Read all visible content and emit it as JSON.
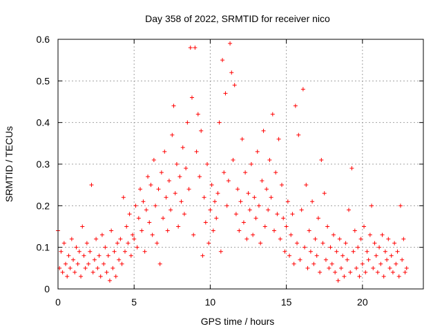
{
  "chart_data": {
    "type": "scatter",
    "title": "Day 358 of 2022, SRMTID for receiver nico",
    "xlabel": "GPS time / hours",
    "ylabel": "SRMTID / TECUs",
    "xlim": [
      0,
      24
    ],
    "ylim": [
      0,
      0.6
    ],
    "xticks": [
      0,
      5,
      10,
      15,
      20
    ],
    "yticks": [
      0,
      0.1,
      0.2,
      0.3,
      0.4,
      0.5,
      0.6
    ],
    "xtick_labels": [
      "0",
      "5",
      "10",
      "15",
      "20"
    ],
    "ytick_labels": [
      "0",
      "0.1",
      "0.2",
      "0.3",
      "0.4",
      "0.5",
      "0.6"
    ],
    "grid": true,
    "marker": "+",
    "series": [
      {
        "name": "SRMTID",
        "color": "#ff0000",
        "points": [
          [
            0.0,
            0.14
          ],
          [
            0.1,
            0.05
          ],
          [
            0.2,
            0.09
          ],
          [
            0.3,
            0.04
          ],
          [
            0.4,
            0.11
          ],
          [
            0.5,
            0.06
          ],
          [
            0.6,
            0.03
          ],
          [
            0.7,
            0.08
          ],
          [
            0.8,
            0.05
          ],
          [
            0.9,
            0.12
          ],
          [
            1.0,
            0.07
          ],
          [
            1.1,
            0.04
          ],
          [
            1.2,
            0.1
          ],
          [
            1.3,
            0.06
          ],
          [
            1.4,
            0.09
          ],
          [
            1.5,
            0.03
          ],
          [
            1.6,
            0.15
          ],
          [
            1.7,
            0.08
          ],
          [
            1.8,
            0.05
          ],
          [
            1.9,
            0.11
          ],
          [
            2.0,
            0.06
          ],
          [
            2.1,
            0.09
          ],
          [
            2.2,
            0.25
          ],
          [
            2.3,
            0.04
          ],
          [
            2.4,
            0.07
          ],
          [
            2.5,
            0.12
          ],
          [
            2.6,
            0.05
          ],
          [
            2.7,
            0.08
          ],
          [
            2.8,
            0.03
          ],
          [
            2.9,
            0.13
          ],
          [
            3.0,
            0.06
          ],
          [
            3.1,
            0.1
          ],
          [
            3.2,
            0.04
          ],
          [
            3.3,
            0.08
          ],
          [
            3.4,
            0.02
          ],
          [
            3.5,
            0.14
          ],
          [
            3.6,
            0.05
          ],
          [
            3.7,
            0.09
          ],
          [
            3.8,
            0.03
          ],
          [
            3.9,
            0.11
          ],
          [
            4.0,
            0.07
          ],
          [
            4.1,
            0.12
          ],
          [
            4.2,
            0.06
          ],
          [
            4.3,
            0.22
          ],
          [
            4.4,
            0.09
          ],
          [
            4.5,
            0.15
          ],
          [
            4.6,
            0.11
          ],
          [
            4.7,
            0.18
          ],
          [
            4.8,
            0.08
          ],
          [
            4.9,
            0.13
          ],
          [
            5.0,
            0.12
          ],
          [
            5.1,
            0.2
          ],
          [
            5.2,
            0.1
          ],
          [
            5.3,
            0.17
          ],
          [
            5.4,
            0.24
          ],
          [
            5.5,
            0.14
          ],
          [
            5.6,
            0.21
          ],
          [
            5.7,
            0.09
          ],
          [
            5.8,
            0.19
          ],
          [
            5.9,
            0.27
          ],
          [
            6.0,
            0.16
          ],
          [
            6.1,
            0.25
          ],
          [
            6.2,
            0.13
          ],
          [
            6.3,
            0.31
          ],
          [
            6.4,
            0.2
          ],
          [
            6.5,
            0.11
          ],
          [
            6.6,
            0.24
          ],
          [
            6.7,
            0.06
          ],
          [
            6.8,
            0.28
          ],
          [
            6.9,
            0.17
          ],
          [
            7.0,
            0.33
          ],
          [
            7.1,
            0.22
          ],
          [
            7.2,
            0.14
          ],
          [
            7.3,
            0.26
          ],
          [
            7.4,
            0.19
          ],
          [
            7.5,
            0.37
          ],
          [
            7.6,
            0.44
          ],
          [
            7.7,
            0.23
          ],
          [
            7.8,
            0.3
          ],
          [
            7.9,
            0.15
          ],
          [
            8.0,
            0.27
          ],
          [
            8.1,
            0.21
          ],
          [
            8.2,
            0.34
          ],
          [
            8.3,
            0.18
          ],
          [
            8.4,
            0.29
          ],
          [
            8.5,
            0.4
          ],
          [
            8.6,
            0.24
          ],
          [
            8.7,
            0.58
          ],
          [
            8.8,
            0.46
          ],
          [
            8.9,
            0.13
          ],
          [
            9.0,
            0.58
          ],
          [
            9.1,
            0.33
          ],
          [
            9.2,
            0.42
          ],
          [
            9.3,
            0.27
          ],
          [
            9.4,
            0.38
          ],
          [
            9.5,
            0.08
          ],
          [
            9.6,
            0.22
          ],
          [
            9.7,
            0.16
          ],
          [
            9.8,
            0.3
          ],
          [
            9.9,
            0.11
          ],
          [
            10.0,
            0.19
          ],
          [
            10.1,
            0.25
          ],
          [
            10.2,
            0.14
          ],
          [
            10.3,
            0.21
          ],
          [
            10.4,
            0.17
          ],
          [
            10.5,
            0.23
          ],
          [
            10.6,
            0.4
          ],
          [
            10.7,
            0.09
          ],
          [
            10.8,
            0.55
          ],
          [
            10.9,
            0.28
          ],
          [
            11.0,
            0.47
          ],
          [
            11.1,
            0.2
          ],
          [
            11.2,
            0.26
          ],
          [
            11.3,
            0.59
          ],
          [
            11.4,
            0.52
          ],
          [
            11.5,
            0.31
          ],
          [
            11.6,
            0.49
          ],
          [
            11.7,
            0.18
          ],
          [
            11.8,
            0.24
          ],
          [
            11.9,
            0.14
          ],
          [
            12.0,
            0.21
          ],
          [
            12.1,
            0.36
          ],
          [
            12.2,
            0.16
          ],
          [
            12.3,
            0.28
          ],
          [
            12.4,
            0.12
          ],
          [
            12.5,
            0.23
          ],
          [
            12.6,
            0.19
          ],
          [
            12.7,
            0.3
          ],
          [
            12.8,
            0.13
          ],
          [
            12.9,
            0.22
          ],
          [
            13.0,
            0.17
          ],
          [
            13.1,
            0.33
          ],
          [
            13.2,
            0.2
          ],
          [
            13.3,
            0.11
          ],
          [
            13.4,
            0.26
          ],
          [
            13.5,
            0.38
          ],
          [
            13.6,
            0.15
          ],
          [
            13.7,
            0.24
          ],
          [
            13.8,
            0.19
          ],
          [
            13.9,
            0.31
          ],
          [
            14.0,
            0.22
          ],
          [
            14.1,
            0.42
          ],
          [
            14.2,
            0.14
          ],
          [
            14.3,
            0.28
          ],
          [
            14.4,
            0.18
          ],
          [
            14.5,
            0.36
          ],
          [
            14.6,
            0.12
          ],
          [
            14.7,
            0.25
          ],
          [
            14.8,
            0.17
          ],
          [
            14.9,
            0.09
          ],
          [
            15.0,
            0.15
          ],
          [
            15.1,
            0.21
          ],
          [
            15.2,
            0.08
          ],
          [
            15.3,
            0.13
          ],
          [
            15.4,
            0.18
          ],
          [
            15.5,
            0.06
          ],
          [
            15.6,
            0.44
          ],
          [
            15.7,
            0.11
          ],
          [
            15.8,
            0.37
          ],
          [
            15.9,
            0.07
          ],
          [
            16.0,
            0.19
          ],
          [
            16.1,
            0.48
          ],
          [
            16.2,
            0.1
          ],
          [
            16.3,
            0.25
          ],
          [
            16.4,
            0.05
          ],
          [
            16.5,
            0.14
          ],
          [
            16.6,
            0.09
          ],
          [
            16.7,
            0.21
          ],
          [
            16.8,
            0.06
          ],
          [
            16.9,
            0.12
          ],
          [
            17.0,
            0.08
          ],
          [
            17.1,
            0.17
          ],
          [
            17.2,
            0.04
          ],
          [
            17.3,
            0.31
          ],
          [
            17.4,
            0.11
          ],
          [
            17.5,
            0.23
          ],
          [
            17.6,
            0.07
          ],
          [
            17.7,
            0.15
          ],
          [
            17.8,
            0.05
          ],
          [
            17.9,
            0.1
          ],
          [
            18.0,
            0.06
          ],
          [
            18.1,
            0.13
          ],
          [
            18.2,
            0.04
          ],
          [
            18.3,
            0.09
          ],
          [
            18.4,
            0.02
          ],
          [
            18.5,
            0.12
          ],
          [
            18.6,
            0.05
          ],
          [
            18.7,
            0.08
          ],
          [
            18.8,
            0.03
          ],
          [
            18.9,
            0.11
          ],
          [
            19.0,
            0.07
          ],
          [
            19.1,
            0.19
          ],
          [
            19.2,
            0.04
          ],
          [
            19.3,
            0.29
          ],
          [
            19.4,
            0.09
          ],
          [
            19.5,
            0.14
          ],
          [
            19.6,
            0.05
          ],
          [
            19.7,
            0.1
          ],
          [
            19.8,
            0.03
          ],
          [
            19.9,
            0.12
          ],
          [
            20.0,
            0.06
          ],
          [
            20.1,
            0.15
          ],
          [
            20.2,
            0.04
          ],
          [
            20.3,
            0.09
          ],
          [
            20.4,
            0.07
          ],
          [
            20.5,
            0.13
          ],
          [
            20.6,
            0.2
          ],
          [
            20.7,
            0.05
          ],
          [
            20.8,
            0.11
          ],
          [
            20.9,
            0.08
          ],
          [
            21.0,
            0.04
          ],
          [
            21.1,
            0.1
          ],
          [
            21.2,
            0.06
          ],
          [
            21.3,
            0.13
          ],
          [
            21.4,
            0.03
          ],
          [
            21.5,
            0.09
          ],
          [
            21.6,
            0.07
          ],
          [
            21.7,
            0.12
          ],
          [
            21.8,
            0.05
          ],
          [
            21.9,
            0.08
          ],
          [
            22.0,
            0.04
          ],
          [
            22.1,
            0.11
          ],
          [
            22.2,
            0.06
          ],
          [
            22.3,
            0.09
          ],
          [
            22.4,
            0.03
          ],
          [
            22.5,
            0.2
          ],
          [
            22.6,
            0.07
          ],
          [
            22.7,
            0.12
          ],
          [
            22.8,
            0.04
          ],
          [
            22.9,
            0.05
          ]
        ]
      }
    ]
  }
}
